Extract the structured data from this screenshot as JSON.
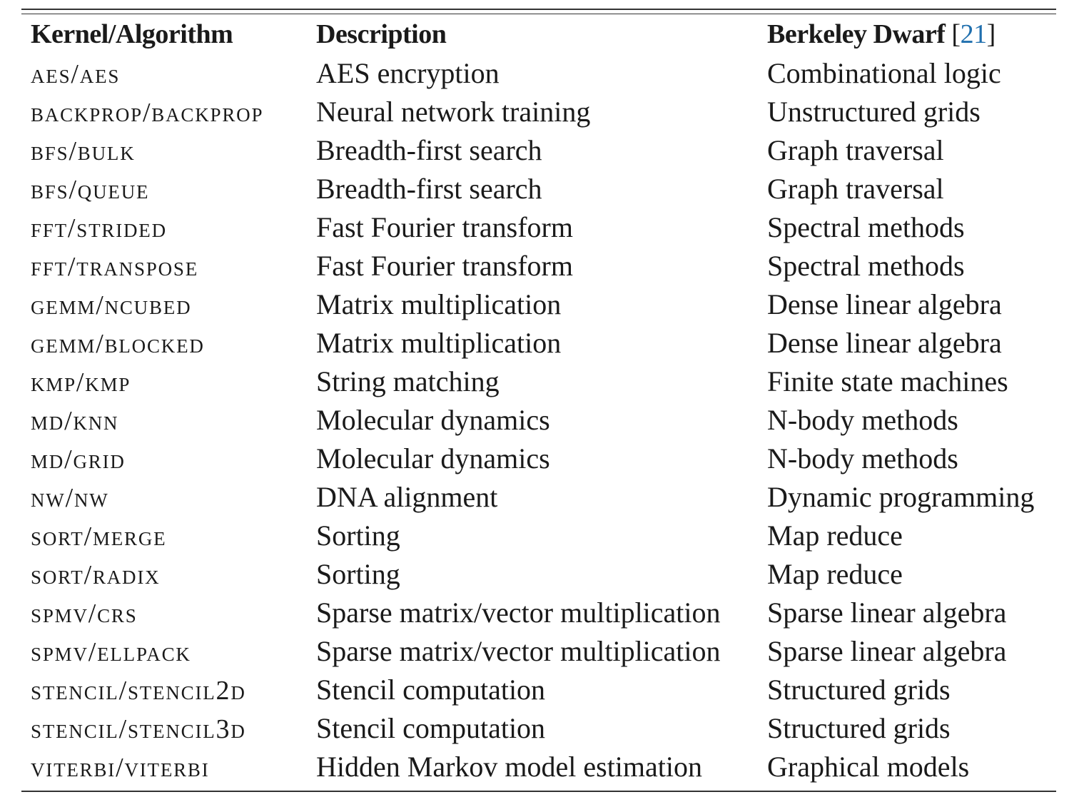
{
  "table": {
    "headers": {
      "kernel": "Kernel/Algorithm",
      "description": "Description",
      "dwarf": "Berkeley Dwarf",
      "cite_open": "[",
      "cite_num": "21",
      "cite_close": "]"
    },
    "rows": [
      {
        "kernel": "aes/aes",
        "description": "AES encryption",
        "dwarf": "Combinational logic"
      },
      {
        "kernel": "backprop/backprop",
        "description": "Neural network training",
        "dwarf": "Unstructured grids"
      },
      {
        "kernel": "bfs/bulk",
        "description": "Breadth-first search",
        "dwarf": "Graph traversal"
      },
      {
        "kernel": "bfs/queue",
        "description": "Breadth-first search",
        "dwarf": "Graph traversal"
      },
      {
        "kernel": "fft/strided",
        "description": "Fast Fourier transform",
        "dwarf": "Spectral methods"
      },
      {
        "kernel": "fft/transpose",
        "description": "Fast Fourier transform",
        "dwarf": "Spectral methods"
      },
      {
        "kernel": "gemm/ncubed",
        "description": "Matrix multiplication",
        "dwarf": "Dense linear algebra"
      },
      {
        "kernel": "gemm/blocked",
        "description": "Matrix multiplication",
        "dwarf": "Dense linear algebra"
      },
      {
        "kernel": "kmp/kmp",
        "description": "String matching",
        "dwarf": "Finite state machines"
      },
      {
        "kernel": "md/knn",
        "description": "Molecular dynamics",
        "dwarf": "N-body methods"
      },
      {
        "kernel": "md/grid",
        "description": "Molecular dynamics",
        "dwarf": "N-body methods"
      },
      {
        "kernel": "nw/nw",
        "description": "DNA alignment",
        "dwarf": "Dynamic programming"
      },
      {
        "kernel": "sort/merge",
        "description": "Sorting",
        "dwarf": "Map reduce"
      },
      {
        "kernel": "sort/radix",
        "description": "Sorting",
        "dwarf": "Map reduce"
      },
      {
        "kernel": "spmv/crs",
        "description": "Sparse matrix/vector multiplication",
        "dwarf": "Sparse linear algebra"
      },
      {
        "kernel": "spmv/ellpack",
        "description": "Sparse matrix/vector multiplication",
        "dwarf": "Sparse linear algebra"
      },
      {
        "kernel": "stencil/stencil2d",
        "description": "Stencil computation",
        "dwarf": "Structured grids"
      },
      {
        "kernel": "stencil/stencil3d",
        "description": "Stencil computation",
        "dwarf": "Structured grids"
      },
      {
        "kernel": "viterbi/viterbi",
        "description": "Hidden Markov model estimation",
        "dwarf": "Graphical models"
      }
    ]
  }
}
